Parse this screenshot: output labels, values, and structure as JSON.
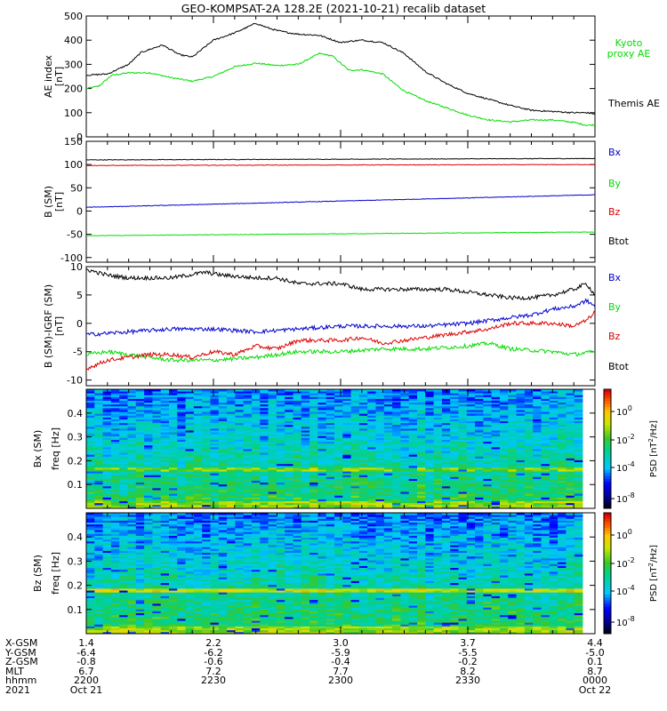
{
  "title": "GEO-KOMPSAT-2A 128.2E (2021-10-21) recalib dataset",
  "colors": {
    "black": "#000000",
    "green": "#00dd00",
    "red": "#dd0000",
    "blue": "#0000cc"
  },
  "ephemeris": {
    "labels": [
      "X-GSM",
      "Y-GSM",
      "Z-GSM",
      "MLT",
      "hhmm",
      "2021"
    ],
    "columns": [
      [
        "1.4",
        "-6.4",
        "-0.8",
        "6.7",
        "2200",
        "Oct 21"
      ],
      [
        "2.2",
        "-6.2",
        "-0.6",
        "7.2",
        "2230",
        ""
      ],
      [
        "3.0",
        "-5.9",
        "-0.4",
        "7.7",
        "2300",
        ""
      ],
      [
        "3.7",
        "-5.5",
        "-0.2",
        "8.2",
        "2330",
        ""
      ],
      [
        "4.4",
        "-5.0",
        "0.1",
        "8.7",
        "0000",
        "Oct 22"
      ]
    ]
  },
  "chart_data": [
    {
      "type": "line",
      "ylabel": "AE index",
      "yunit": "[nT]",
      "ylim": [
        0,
        500
      ],
      "yticks": [
        "0",
        "100",
        "200",
        "300",
        "400",
        "500"
      ],
      "xlim": [
        0,
        120
      ],
      "series": [
        {
          "name": "Kyoto proxy AE",
          "color": "#00dd00",
          "x": [
            0,
            3,
            6,
            10,
            15,
            20,
            25,
            30,
            35,
            40,
            45,
            50,
            55,
            58,
            62,
            65,
            70,
            72,
            75,
            80,
            85,
            90,
            95,
            100,
            105,
            110,
            115,
            118,
            120
          ],
          "y": [
            200,
            210,
            255,
            265,
            265,
            245,
            230,
            250,
            290,
            305,
            295,
            300,
            345,
            335,
            275,
            278,
            260,
            230,
            190,
            150,
            120,
            90,
            70,
            62,
            70,
            70,
            60,
            48,
            50
          ]
        },
        {
          "name": "Themis AE",
          "color": "#000000",
          "x": [
            0,
            5,
            10,
            13,
            18,
            22,
            25,
            30,
            35,
            40,
            43,
            45,
            48,
            50,
            55,
            60,
            62,
            65,
            70,
            75,
            80,
            85,
            90,
            95,
            100,
            105,
            110,
            115,
            118,
            120
          ],
          "y": [
            255,
            260,
            300,
            350,
            380,
            340,
            330,
            400,
            430,
            470,
            450,
            440,
            430,
            425,
            420,
            390,
            395,
            400,
            390,
            345,
            270,
            220,
            180,
            155,
            130,
            110,
            105,
            100,
            100,
            95
          ]
        }
      ]
    },
    {
      "type": "line",
      "ylabel": "B (SM)",
      "yunit": "[nT]",
      "ylim": [
        -110,
        150
      ],
      "yticks": [
        "-100",
        "-50",
        "0",
        "50",
        "100",
        "150"
      ],
      "xlim": [
        0,
        120
      ],
      "series": [
        {
          "name": "Bx",
          "color": "#000000",
          "x": [
            0,
            120
          ],
          "y": [
            110,
            113
          ]
        },
        {
          "name": "By",
          "color": "#00dd00",
          "x": [
            0,
            120
          ],
          "y": [
            -53,
            -45
          ]
        },
        {
          "name": "Bz",
          "color": "#dd0000",
          "x": [
            0,
            120
          ],
          "y": [
            98,
            100
          ]
        },
        {
          "name": "Btot",
          "color": "#0000cc",
          "x": [
            0,
            120
          ],
          "y": [
            8,
            35
          ]
        }
      ]
    },
    {
      "type": "line",
      "ylabel": "B (SM)-IGRF (SM)",
      "yunit": "[nT]",
      "ylim": [
        -11,
        10
      ],
      "yticks": [
        "-10",
        "-5",
        "0",
        "5",
        "10"
      ],
      "xlim": [
        0,
        120
      ],
      "series": [
        {
          "name": "Bx",
          "color": "#000000",
          "x": [
            0,
            5,
            10,
            20,
            28,
            32,
            40,
            45,
            50,
            60,
            65,
            75,
            85,
            95,
            100,
            105,
            110,
            115,
            118,
            120
          ],
          "y": [
            9.5,
            8.5,
            8,
            8,
            9,
            8.5,
            8,
            8,
            7,
            7,
            6,
            6,
            6,
            5,
            4.5,
            4.5,
            5,
            6,
            7,
            5
          ]
        },
        {
          "name": "By",
          "color": "#00dd00",
          "x": [
            0,
            5,
            10,
            20,
            30,
            40,
            50,
            60,
            70,
            80,
            90,
            95,
            100,
            110,
            115,
            120
          ],
          "y": [
            -5.5,
            -5,
            -5.5,
            -6.5,
            -6.5,
            -6,
            -5,
            -5,
            -4.5,
            -4.5,
            -4,
            -3.5,
            -4.5,
            -5,
            -5.5,
            -5
          ]
        },
        {
          "name": "Bz",
          "color": "#dd0000",
          "x": [
            0,
            5,
            10,
            15,
            20,
            25,
            30,
            35,
            40,
            45,
            50,
            60,
            65,
            70,
            75,
            80,
            85,
            90,
            95,
            100,
            105,
            110,
            115,
            118,
            120
          ],
          "y": [
            -8,
            -6.5,
            -6,
            -5.5,
            -5.5,
            -6,
            -5,
            -5.5,
            -4,
            -4.5,
            -3,
            -3,
            -2.5,
            -3.5,
            -3,
            -2.5,
            -2,
            -1.5,
            -1,
            0,
            0,
            0,
            -0.5,
            0.5,
            2
          ]
        },
        {
          "name": "Btot",
          "color": "#0000cc",
          "x": [
            0,
            10,
            20,
            30,
            40,
            50,
            60,
            70,
            80,
            90,
            100,
            105,
            110,
            115,
            118,
            120
          ],
          "y": [
            -2,
            -1.5,
            -1,
            -1,
            -1.5,
            -1,
            -0.5,
            -0.5,
            -0.5,
            0,
            1,
            1.5,
            2.5,
            3,
            4,
            3
          ]
        }
      ]
    },
    {
      "type": "heatmap",
      "ylabel": "Bx (SM)",
      "ylabel2": "freq [Hz]",
      "ylim": [
        0,
        0.5
      ],
      "yticks": [
        "0.1",
        "0.2",
        "0.3",
        "0.4"
      ],
      "colorbar": {
        "label": "PSD [nT",
        "label_sup": "2",
        "label_end": "/Hz]",
        "ticks": [
          {
            "base": "10",
            "exp": "0"
          },
          {
            "base": "10",
            "exp": "-2"
          },
          {
            "base": "10",
            "exp": "-4"
          },
          {
            "base": "10",
            "exp": "-8"
          }
        ]
      }
    },
    {
      "type": "heatmap",
      "ylabel": "Bz (SM)",
      "ylabel2": "freq [Hz]",
      "ylim": [
        0,
        0.5
      ],
      "yticks": [
        "0.1",
        "0.2",
        "0.3",
        "0.4"
      ],
      "colorbar": {
        "label": "PSD [nT",
        "label_sup": "2",
        "label_end": "/Hz]",
        "ticks": [
          {
            "base": "10",
            "exp": "0"
          },
          {
            "base": "10",
            "exp": "-2"
          },
          {
            "base": "10",
            "exp": "-4"
          },
          {
            "base": "10",
            "exp": "-8"
          }
        ]
      }
    }
  ]
}
